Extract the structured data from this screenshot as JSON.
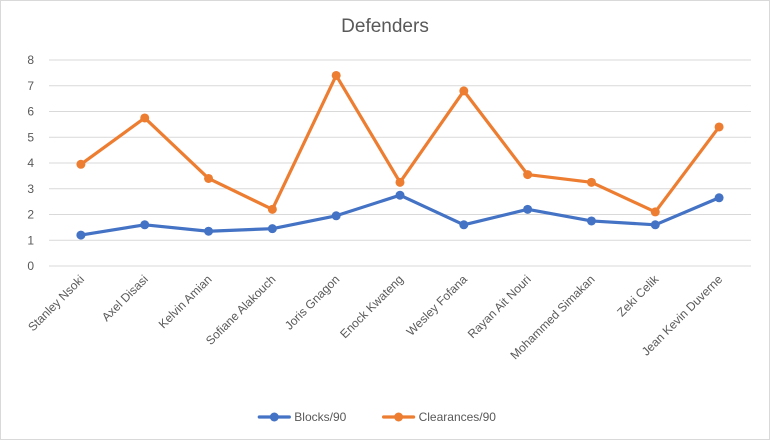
{
  "chart_data": {
    "type": "line",
    "title": "Defenders",
    "categories": [
      "Stanley Nsoki",
      "Axel Disasi",
      "Kelvin Amian",
      "Sofiane Alakouch",
      "Joris Gnagon",
      "Enock Kwateng",
      "Wesley Fofana",
      "Rayan Ait Nouri",
      "Mohammed Simakan",
      "Zeki Celik",
      "Jean Kevin Duverne"
    ],
    "series": [
      {
        "name": "Blocks/90",
        "color": "#4472c4",
        "values": [
          1.2,
          1.6,
          1.35,
          1.45,
          1.95,
          2.75,
          1.6,
          2.2,
          1.75,
          1.6,
          2.65
        ]
      },
      {
        "name": "Clearances/90",
        "color": "#ed7d31",
        "values": [
          3.95,
          5.75,
          3.4,
          2.2,
          7.4,
          3.25,
          6.8,
          3.55,
          3.25,
          2.1,
          5.4
        ]
      }
    ],
    "ylim": [
      0,
      8
    ],
    "yticks": [
      "0",
      "1",
      "2",
      "3",
      "4",
      "5",
      "6",
      "7",
      "8"
    ],
    "grid": true,
    "legend": "bottom",
    "xlabel": "",
    "ylabel": ""
  }
}
